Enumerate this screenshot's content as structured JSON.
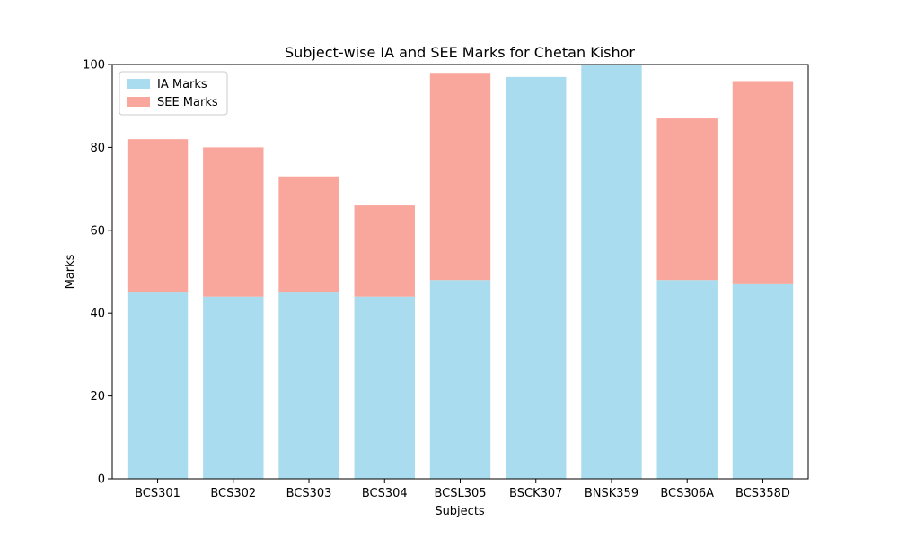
{
  "chart_data": {
    "type": "bar",
    "stacked": true,
    "title": "Subject-wise IA and SEE Marks for Chetan Kishor",
    "xlabel": "Subjects",
    "ylabel": "Marks",
    "ylim": [
      0,
      100
    ],
    "yticks": [
      0,
      20,
      40,
      60,
      80,
      100
    ],
    "categories": [
      "BCS301",
      "BCS302",
      "BCS303",
      "BCS304",
      "BCSL305",
      "BSCK307",
      "BNSK359",
      "BCS306A",
      "BCS358D"
    ],
    "series": [
      {
        "name": "IA Marks",
        "color": "#a8dcee",
        "values": [
          45,
          44,
          45,
          44,
          48,
          97,
          100,
          48,
          47
        ]
      },
      {
        "name": "SEE Marks",
        "color": "#f9a79c",
        "values": [
          37,
          36,
          28,
          22,
          50,
          0,
          0,
          39,
          49
        ]
      }
    ],
    "legend_position": "top-left",
    "grid": false
  }
}
